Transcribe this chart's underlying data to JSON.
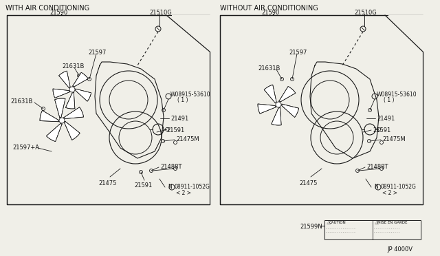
{
  "bg_color": "#f0efe8",
  "line_color": "#1a1a1a",
  "font_color": "#111111",
  "title_left": "WITH AIR CONDITIONING",
  "title_right": "WITHOUT AIR CONDITIONING",
  "part_number": "JP 4000V",
  "caution_label": "21599N—"
}
